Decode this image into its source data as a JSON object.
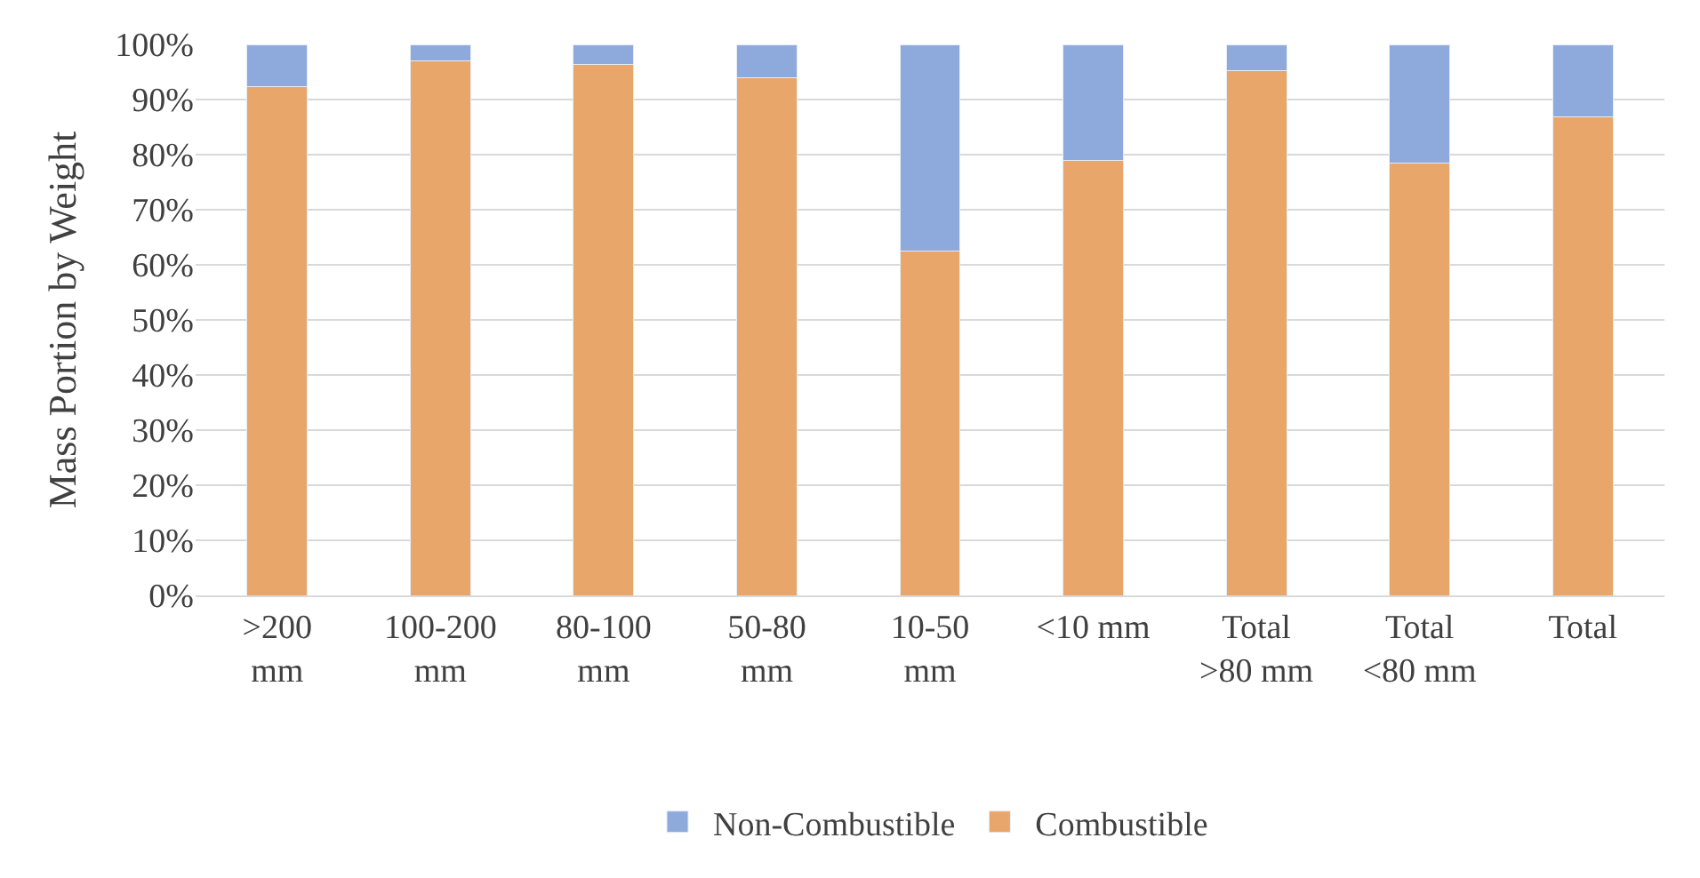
{
  "chart_data": {
    "type": "bar",
    "stacked": true,
    "ylabel": "Mass Portion by Weight",
    "categories": [
      ">200 mm",
      "100-200 mm",
      "80-100 mm",
      "50-80 mm",
      "10-50 mm",
      "<10 mm",
      "Total >80 mm",
      "Total <80 mm",
      "Total"
    ],
    "series": [
      {
        "name": "Combustible",
        "color": "#e9a66b",
        "values": [
          92.3,
          97.0,
          96.3,
          94.0,
          62.5,
          79.0,
          95.3,
          78.5,
          86.8
        ]
      },
      {
        "name": "Non-Combustible",
        "color": "#8eaadc",
        "values": [
          7.7,
          3.0,
          3.7,
          6.0,
          37.5,
          21.0,
          4.7,
          21.5,
          13.2
        ]
      }
    ],
    "ylim": [
      0,
      100
    ],
    "yticks": [
      {
        "value": 0,
        "label": "0%"
      },
      {
        "value": 10,
        "label": "10%"
      },
      {
        "value": 20,
        "label": "20%"
      },
      {
        "value": 30,
        "label": "30%"
      },
      {
        "value": 40,
        "label": "40%"
      },
      {
        "value": 50,
        "label": "50%"
      },
      {
        "value": 60,
        "label": "60%"
      },
      {
        "value": 70,
        "label": "70%"
      },
      {
        "value": 80,
        "label": "80%"
      },
      {
        "value": 90,
        "label": "90%"
      },
      {
        "value": 100,
        "label": "100%"
      }
    ],
    "grid": "y",
    "legend": "bottom"
  }
}
